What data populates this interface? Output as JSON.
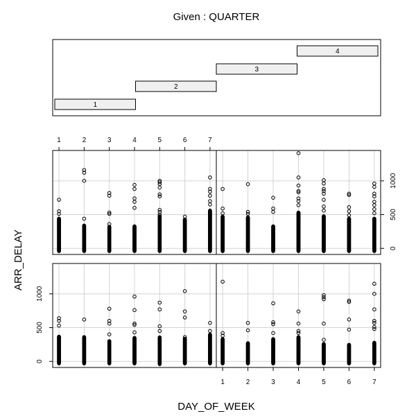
{
  "chart_data": {
    "type": "scatter",
    "title": "Given : QUARTER",
    "xlabel": "DAY_OF_WEEK",
    "ylabel": "ARR_DELAY",
    "x_ticks": [
      1,
      2,
      3,
      4,
      5,
      6,
      7
    ],
    "y_ticks": [
      0,
      500,
      1000
    ],
    "xlim": [
      0.75,
      7.25
    ],
    "ylim": [
      -90,
      1450
    ],
    "grid": true,
    "given": {
      "variable": "QUARTER",
      "intervals": [
        {
          "label": "1",
          "range": [
            0.5,
            1.5
          ]
        },
        {
          "label": "2",
          "range": [
            1.5,
            2.5
          ]
        },
        {
          "label": "3",
          "range": [
            2.5,
            3.5
          ]
        },
        {
          "label": "4",
          "range": [
            3.5,
            4.5
          ]
        }
      ],
      "range": [
        0.5,
        4.5
      ]
    },
    "panels": [
      {
        "quarter": "1",
        "dense": [
          {
            "x": 1,
            "lo": -30,
            "hi": 370
          },
          {
            "x": 2,
            "lo": -30,
            "hi": 360
          },
          {
            "x": 3,
            "lo": -30,
            "hi": 300
          },
          {
            "x": 4,
            "lo": -30,
            "hi": 350
          },
          {
            "x": 5,
            "lo": -40,
            "hi": 360
          },
          {
            "x": 6,
            "lo": -30,
            "hi": 340
          },
          {
            "x": 7,
            "lo": -30,
            "hi": 400
          }
        ],
        "outliers": [
          {
            "x": 1,
            "y": 640
          },
          {
            "x": 1,
            "y": 600
          },
          {
            "x": 1,
            "y": 530
          },
          {
            "x": 2,
            "y": 620
          },
          {
            "x": 3,
            "y": 780
          },
          {
            "x": 3,
            "y": 600
          },
          {
            "x": 3,
            "y": 560
          },
          {
            "x": 3,
            "y": 400
          },
          {
            "x": 4,
            "y": 960
          },
          {
            "x": 4,
            "y": 760
          },
          {
            "x": 4,
            "y": 560
          },
          {
            "x": 4,
            "y": 540
          },
          {
            "x": 4,
            "y": 430
          },
          {
            "x": 5,
            "y": 870
          },
          {
            "x": 5,
            "y": 770
          },
          {
            "x": 5,
            "y": 520
          },
          {
            "x": 5,
            "y": 450
          },
          {
            "x": 6,
            "y": 1040
          },
          {
            "x": 6,
            "y": 740
          },
          {
            "x": 6,
            "y": 650
          },
          {
            "x": 6,
            "y": 360
          },
          {
            "x": 7,
            "y": 570
          },
          {
            "x": 7,
            "y": 450
          }
        ]
      },
      {
        "quarter": "2",
        "dense": [
          {
            "x": 1,
            "lo": -30,
            "hi": 330
          },
          {
            "x": 2,
            "lo": -30,
            "hi": 270
          },
          {
            "x": 3,
            "lo": -30,
            "hi": 330
          },
          {
            "x": 4,
            "lo": -30,
            "hi": 360
          },
          {
            "x": 5,
            "lo": -30,
            "hi": 260
          },
          {
            "x": 6,
            "lo": -30,
            "hi": 250
          },
          {
            "x": 7,
            "lo": -30,
            "hi": 280
          }
        ],
        "outliers": [
          {
            "x": 1,
            "y": 1180
          },
          {
            "x": 1,
            "y": 420
          },
          {
            "x": 1,
            "y": 380
          },
          {
            "x": 2,
            "y": 570
          },
          {
            "x": 2,
            "y": 460
          },
          {
            "x": 3,
            "y": 860
          },
          {
            "x": 3,
            "y": 580
          },
          {
            "x": 3,
            "y": 550
          },
          {
            "x": 3,
            "y": 420
          },
          {
            "x": 4,
            "y": 740
          },
          {
            "x": 4,
            "y": 560
          },
          {
            "x": 4,
            "y": 450
          },
          {
            "x": 4,
            "y": 420
          },
          {
            "x": 5,
            "y": 980
          },
          {
            "x": 5,
            "y": 950
          },
          {
            "x": 5,
            "y": 920
          },
          {
            "x": 5,
            "y": 560
          },
          {
            "x": 5,
            "y": 320
          },
          {
            "x": 6,
            "y": 900
          },
          {
            "x": 6,
            "y": 880
          },
          {
            "x": 6,
            "y": 620
          },
          {
            "x": 6,
            "y": 470
          },
          {
            "x": 7,
            "y": 1150
          },
          {
            "x": 7,
            "y": 1000
          },
          {
            "x": 7,
            "y": 770
          },
          {
            "x": 7,
            "y": 600
          },
          {
            "x": 7,
            "y": 570
          },
          {
            "x": 7,
            "y": 510
          },
          {
            "x": 7,
            "y": 480
          }
        ]
      },
      {
        "quarter": "3",
        "dense": [
          {
            "x": 1,
            "lo": -40,
            "hi": 440
          },
          {
            "x": 2,
            "lo": -40,
            "hi": 340
          },
          {
            "x": 3,
            "lo": -40,
            "hi": 320
          },
          {
            "x": 4,
            "lo": -40,
            "hi": 330
          },
          {
            "x": 5,
            "lo": -40,
            "hi": 480
          },
          {
            "x": 6,
            "lo": -40,
            "hi": 430
          },
          {
            "x": 7,
            "lo": -40,
            "hi": 560
          }
        ],
        "outliers": [
          {
            "x": 1,
            "y": 720
          },
          {
            "x": 1,
            "y": 550
          },
          {
            "x": 1,
            "y": 510
          },
          {
            "x": 2,
            "y": 1160
          },
          {
            "x": 2,
            "y": 1120
          },
          {
            "x": 2,
            "y": 1000
          },
          {
            "x": 2,
            "y": 440
          },
          {
            "x": 3,
            "y": 820
          },
          {
            "x": 3,
            "y": 780
          },
          {
            "x": 3,
            "y": 530
          },
          {
            "x": 3,
            "y": 510
          },
          {
            "x": 3,
            "y": 360
          },
          {
            "x": 4,
            "y": 940
          },
          {
            "x": 4,
            "y": 880
          },
          {
            "x": 4,
            "y": 740
          },
          {
            "x": 4,
            "y": 690
          },
          {
            "x": 4,
            "y": 600
          },
          {
            "x": 5,
            "y": 1000
          },
          {
            "x": 5,
            "y": 980
          },
          {
            "x": 5,
            "y": 950
          },
          {
            "x": 5,
            "y": 900
          },
          {
            "x": 5,
            "y": 800
          },
          {
            "x": 5,
            "y": 770
          },
          {
            "x": 5,
            "y": 570
          },
          {
            "x": 5,
            "y": 540
          },
          {
            "x": 5,
            "y": 500
          },
          {
            "x": 6,
            "y": 470
          },
          {
            "x": 7,
            "y": 1050
          },
          {
            "x": 7,
            "y": 880
          },
          {
            "x": 7,
            "y": 840
          },
          {
            "x": 7,
            "y": 780
          },
          {
            "x": 7,
            "y": 700
          },
          {
            "x": 7,
            "y": 650
          }
        ]
      },
      {
        "quarter": "4",
        "dense": [
          {
            "x": 1,
            "lo": -40,
            "hi": 470
          },
          {
            "x": 2,
            "lo": -40,
            "hi": 460
          },
          {
            "x": 3,
            "lo": -40,
            "hi": 330
          },
          {
            "x": 4,
            "lo": -40,
            "hi": 530
          },
          {
            "x": 5,
            "lo": -40,
            "hi": 480
          },
          {
            "x": 6,
            "lo": -40,
            "hi": 440
          },
          {
            "x": 7,
            "lo": -40,
            "hi": 440
          }
        ],
        "outliers": [
          {
            "x": 1,
            "y": 880
          },
          {
            "x": 1,
            "y": 590
          },
          {
            "x": 1,
            "y": 520
          },
          {
            "x": 2,
            "y": 950
          },
          {
            "x": 2,
            "y": 540
          },
          {
            "x": 2,
            "y": 510
          },
          {
            "x": 3,
            "y": 750
          },
          {
            "x": 3,
            "y": 590
          },
          {
            "x": 3,
            "y": 540
          },
          {
            "x": 4,
            "y": 1410
          },
          {
            "x": 4,
            "y": 1050
          },
          {
            "x": 4,
            "y": 930
          },
          {
            "x": 4,
            "y": 850
          },
          {
            "x": 4,
            "y": 830
          },
          {
            "x": 4,
            "y": 740
          },
          {
            "x": 4,
            "y": 700
          },
          {
            "x": 4,
            "y": 640
          },
          {
            "x": 5,
            "y": 1010
          },
          {
            "x": 5,
            "y": 960
          },
          {
            "x": 5,
            "y": 880
          },
          {
            "x": 5,
            "y": 850
          },
          {
            "x": 5,
            "y": 810
          },
          {
            "x": 5,
            "y": 720
          },
          {
            "x": 5,
            "y": 620
          },
          {
            "x": 5,
            "y": 560
          },
          {
            "x": 6,
            "y": 810
          },
          {
            "x": 6,
            "y": 790
          },
          {
            "x": 6,
            "y": 610
          },
          {
            "x": 6,
            "y": 550
          },
          {
            "x": 6,
            "y": 490
          },
          {
            "x": 7,
            "y": 960
          },
          {
            "x": 7,
            "y": 910
          },
          {
            "x": 7,
            "y": 810
          },
          {
            "x": 7,
            "y": 770
          },
          {
            "x": 7,
            "y": 690
          },
          {
            "x": 7,
            "y": 640
          },
          {
            "x": 7,
            "y": 580
          },
          {
            "x": 7,
            "y": 520
          }
        ]
      }
    ],
    "colors": {
      "points": "#000000",
      "grid": "#d3d3d3",
      "given_bar_fill": "#f0f0f0",
      "frame": "#000000"
    }
  }
}
